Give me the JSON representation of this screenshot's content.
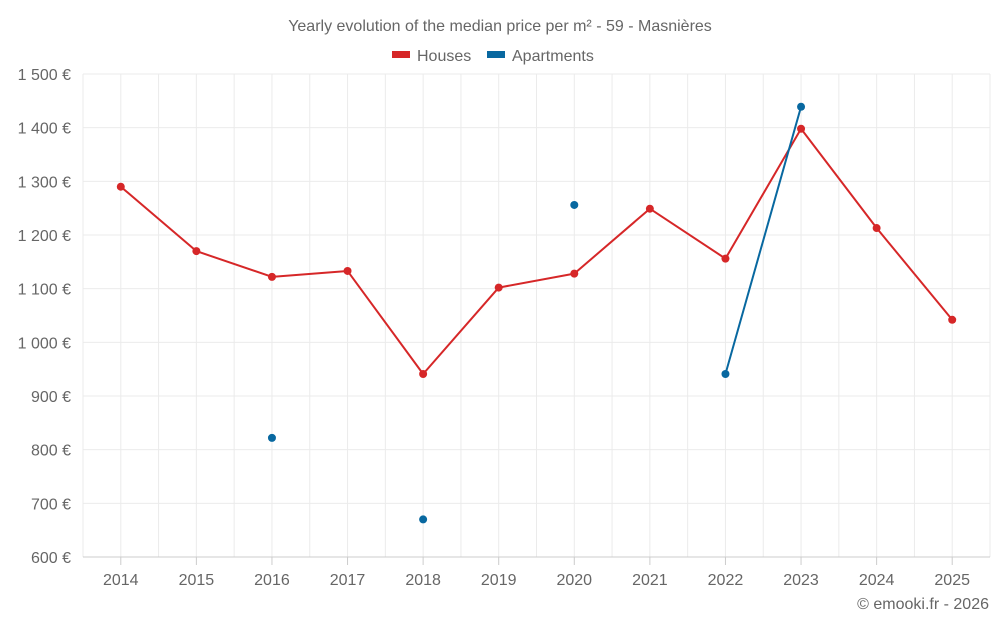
{
  "chart_data": {
    "type": "line",
    "title": "Yearly evolution of the median price per m² - 59 - Masnières",
    "xlabel": "",
    "ylabel": "",
    "categories": [
      "2014",
      "2015",
      "2016",
      "2017",
      "2018",
      "2019",
      "2020",
      "2021",
      "2022",
      "2023",
      "2024",
      "2025"
    ],
    "ylim": [
      600,
      1500
    ],
    "yticks": [
      600,
      700,
      800,
      900,
      1000,
      1100,
      1200,
      1300,
      1400,
      1500
    ],
    "ytick_labels": [
      "600 €",
      "700 €",
      "800 €",
      "900 €",
      "1 000 €",
      "1 100 €",
      "1 200 €",
      "1 300 €",
      "1 400 €",
      "1 500 €"
    ],
    "grid": true,
    "legend_position": "top-center",
    "series": [
      {
        "name": "Houses",
        "color": "#d62728",
        "values": [
          1290,
          1170,
          1122,
          1133,
          941,
          1102,
          1128,
          1249,
          1156,
          1398,
          1213,
          1042
        ]
      },
      {
        "name": "Apartments",
        "color": "#0868a0",
        "values": [
          null,
          null,
          822,
          null,
          670,
          null,
          1256,
          null,
          941,
          1439,
          null,
          null
        ]
      }
    ],
    "credit": "© emooki.fr - 2026"
  }
}
